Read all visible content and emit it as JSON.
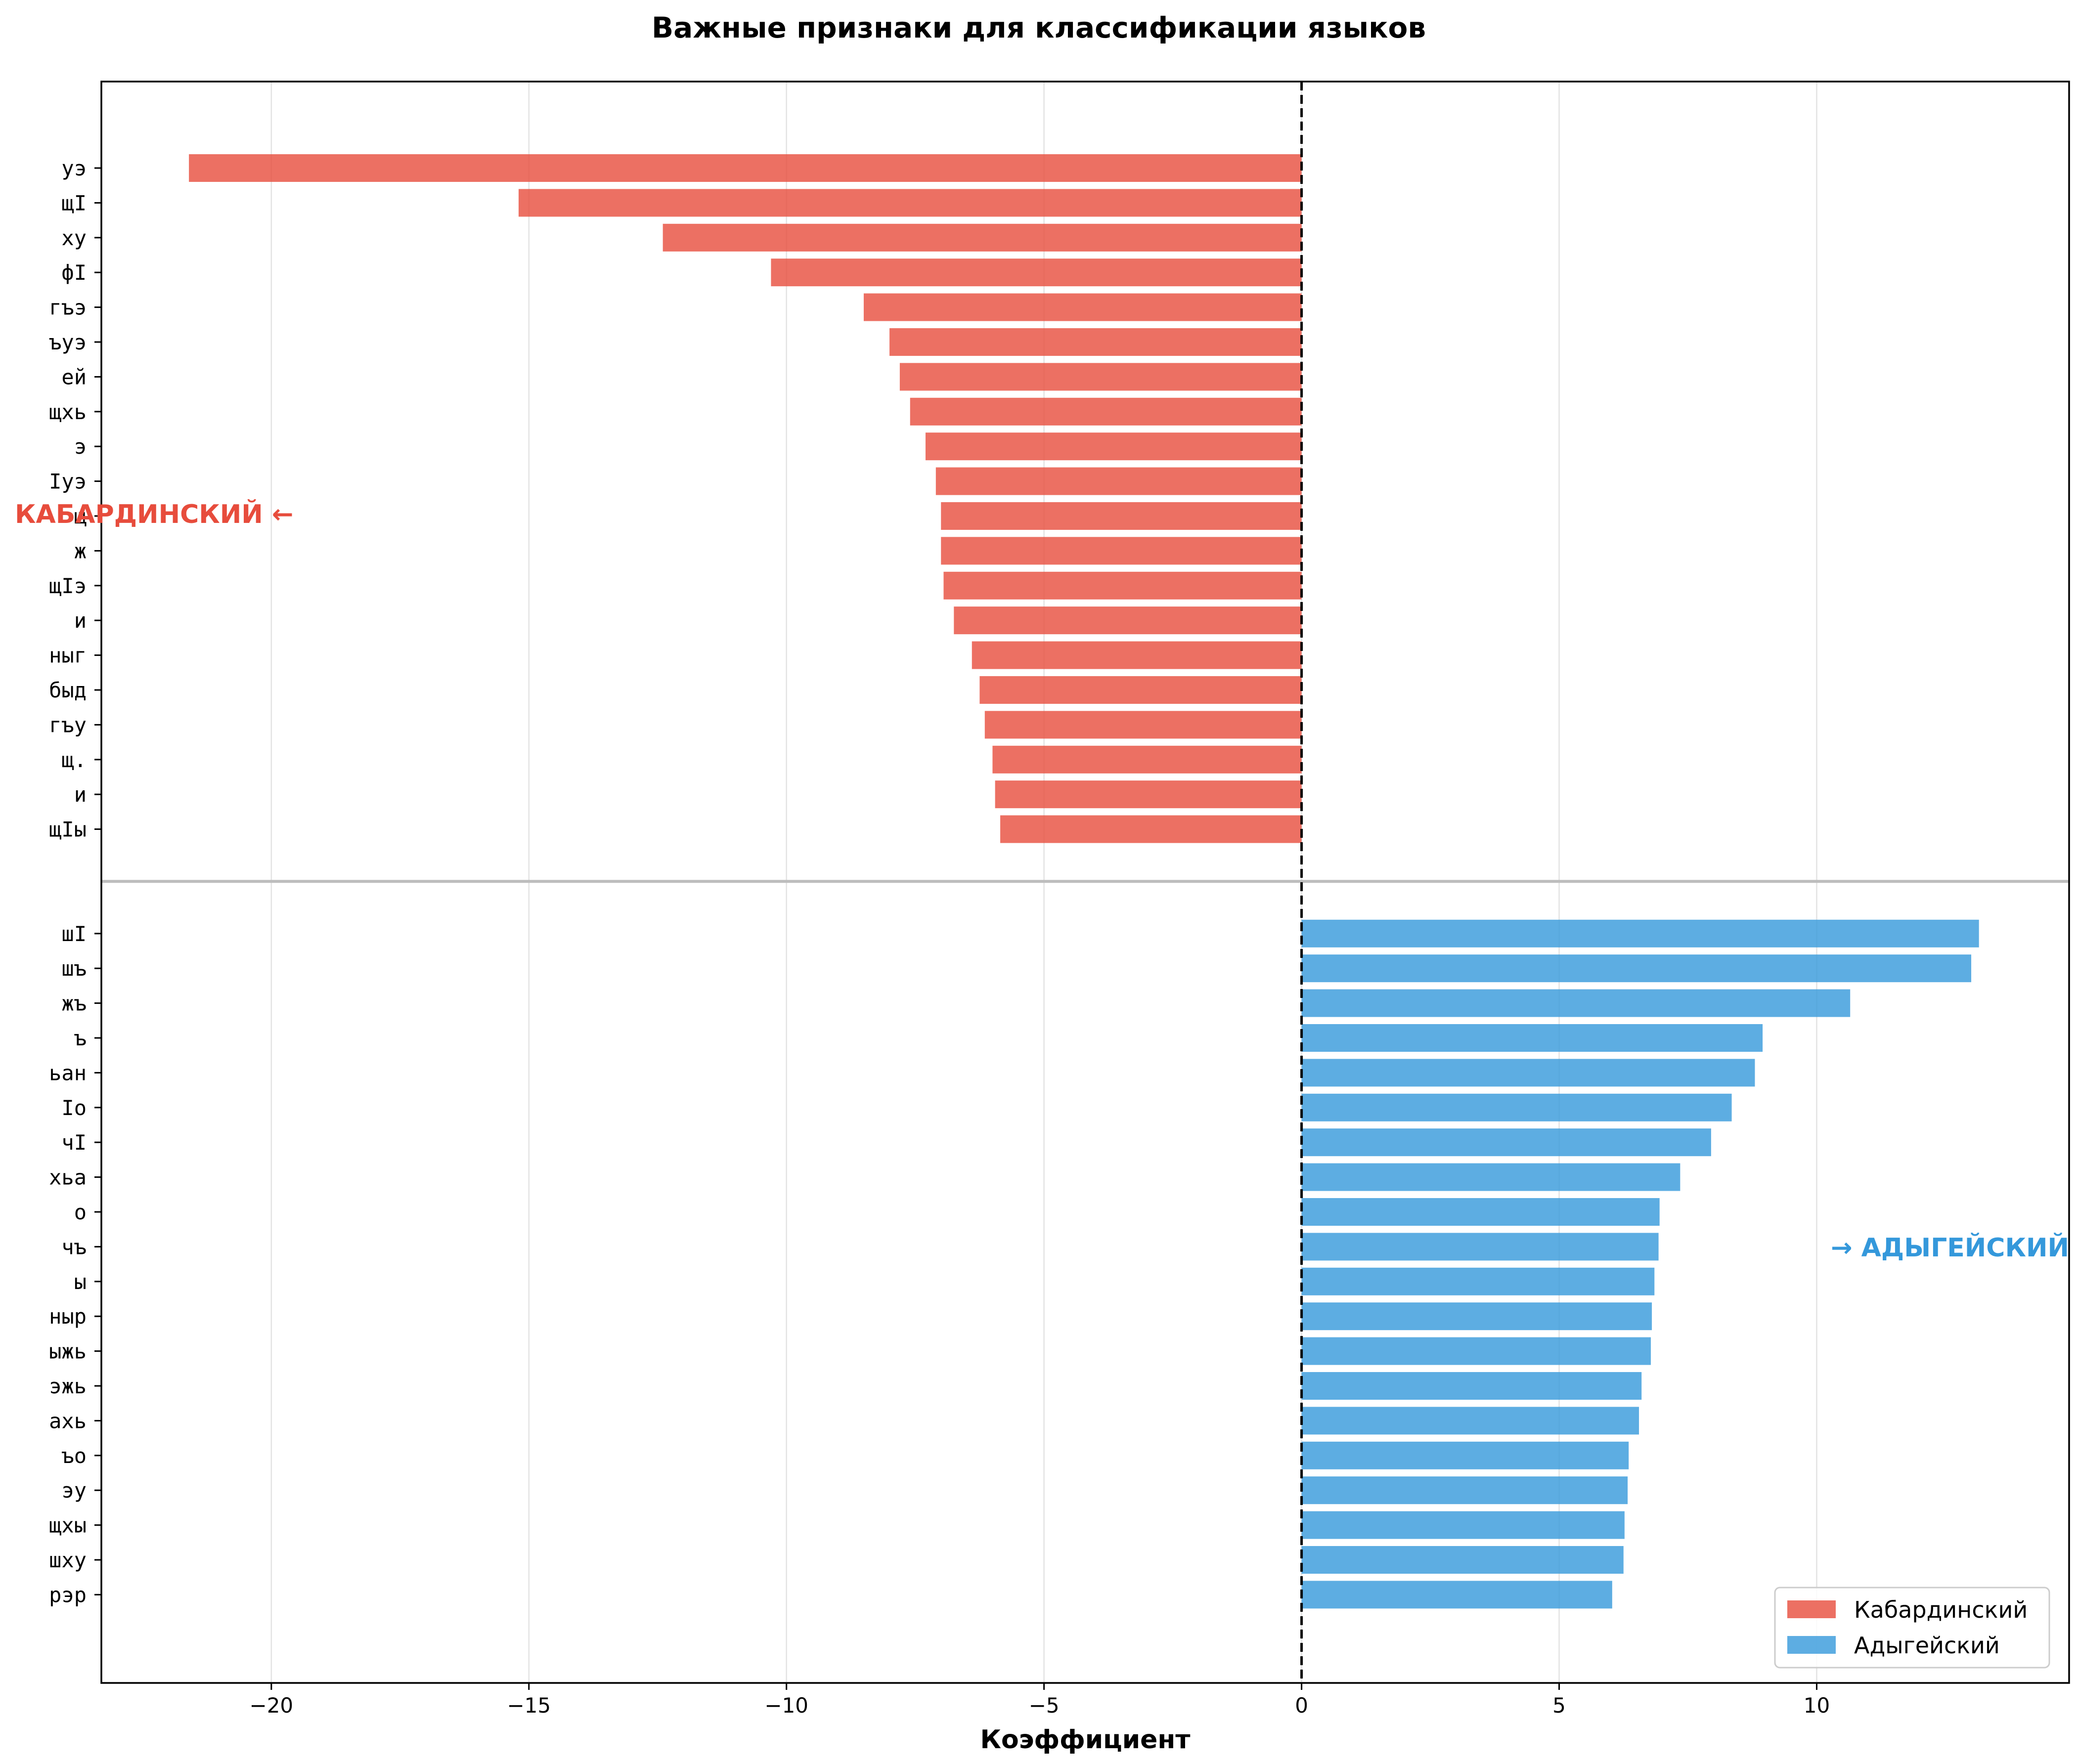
{
  "chart_data": {
    "type": "bar",
    "orientation": "horizontal",
    "title": "Важные признаки для классификации языков",
    "xlabel": "Коэффициент",
    "ylabel": "",
    "xlim": [
      -23.3,
      14.9
    ],
    "xticks": [
      -20,
      -15,
      -10,
      -5,
      0,
      5,
      10
    ],
    "xtick_labels": [
      "−20",
      "−15",
      "−10",
      "−5",
      "0",
      "5",
      "10"
    ],
    "grid": "vertical",
    "legend_position": "lower-right",
    "legend": [
      {
        "label": "Кабардинский",
        "color": "#e74c3c"
      },
      {
        "label": "Адыгейский",
        "color": "#3498db"
      }
    ],
    "annotations": [
      {
        "text": "КАБАРДИНСКИЙ ←",
        "color": "#e74c3c"
      },
      {
        "text": "→ АДЫГЕЙСКИЙ",
        "color": "#3498db"
      }
    ],
    "zero_line": 0,
    "series": [
      {
        "name": "Кабардинский",
        "color": "#e74c3c",
        "categories": [
          "уэ",
          "щӀ",
          "ху",
          "фӀ",
          "гъэ",
          "ъуэ",
          "ей",
          "щхь",
          "э",
          "Ӏуэ",
          "щ",
          "ж",
          "щӀэ",
          "и ",
          "ныг",
          "быд",
          "гъу",
          "щ.",
          "и ",
          "щӀы"
        ],
        "values": [
          -21.6,
          -15.2,
          -12.4,
          -10.3,
          -8.5,
          -8.0,
          -7.8,
          -7.6,
          -7.3,
          -7.1,
          -7.0,
          -7.0,
          -6.95,
          -6.75,
          -6.4,
          -6.25,
          -6.15,
          -6.0,
          -5.95,
          -5.85
        ]
      },
      {
        "name": "Адыгейский",
        "color": "#3498db",
        "categories": [
          "шӀ",
          "шъ",
          "жъ",
          "ъ",
          "ьан",
          "Ӏо",
          "чӀ",
          "хьа",
          "о",
          "чъ",
          "ы",
          "ныр",
          "ыжь",
          "эжь",
          "ахь",
          "ъо",
          "эу",
          "щхы",
          "шху",
          "рэр"
        ],
        "values": [
          13.15,
          13.0,
          10.65,
          8.95,
          8.8,
          8.35,
          7.95,
          7.35,
          6.95,
          6.93,
          6.85,
          6.8,
          6.78,
          6.6,
          6.55,
          6.35,
          6.33,
          6.27,
          6.25,
          6.03
        ]
      }
    ]
  }
}
